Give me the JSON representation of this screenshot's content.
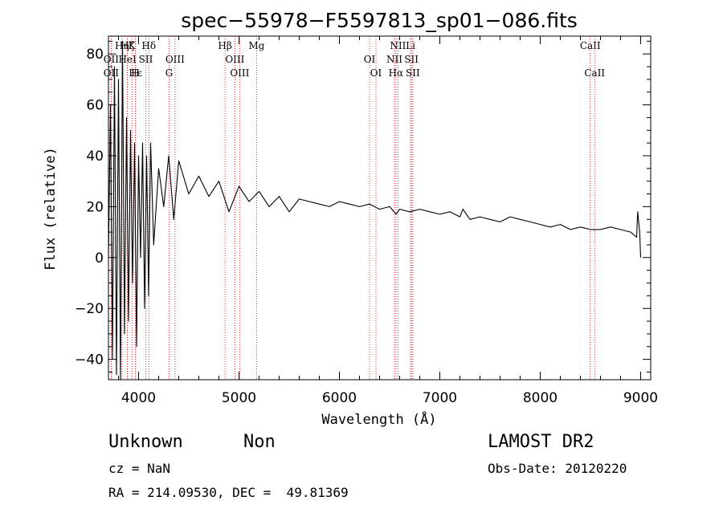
{
  "chart_data": {
    "type": "line",
    "title": "spec−55978−F5597813_sp01−086.fits",
    "xlabel": "Wavelength (Å)",
    "ylabel": "Flux (relative)",
    "xlim": [
      3700,
      9100
    ],
    "ylim": [
      -48,
      87
    ],
    "x_ticks": [
      4000,
      5000,
      6000,
      7000,
      8000,
      9000
    ],
    "y_ticks": [
      -40,
      -20,
      0,
      20,
      40,
      60,
      80
    ],
    "x_tick_labels": [
      "4000",
      "5000",
      "6000",
      "7000",
      "8000",
      "9000"
    ],
    "y_tick_labels": [
      "−40",
      "−20",
      "0",
      "20",
      "40",
      "60",
      "80"
    ],
    "grid": false,
    "line_color": "#000000",
    "marker_color": "#cc0000",
    "series": [
      {
        "x": [
          3700,
          3720,
          3740,
          3760,
          3780,
          3800,
          3820,
          3840,
          3860,
          3880,
          3900,
          3920,
          3940,
          3960,
          3980,
          4000,
          4020,
          4040,
          4060,
          4080,
          4100,
          4120,
          4150,
          4200,
          4250,
          4300,
          4350,
          4400,
          4500,
          4600,
          4700,
          4800,
          4900,
          5000,
          5100,
          5200,
          5300,
          5400,
          5500,
          5600,
          5700,
          5800,
          5900,
          6000,
          6100,
          6200,
          6300,
          6400,
          6500,
          6563,
          6600,
          6700,
          6800,
          6900,
          7000,
          7100,
          7200,
          7230,
          7300,
          7400,
          7500,
          7600,
          7700,
          7800,
          7900,
          8000,
          8100,
          8200,
          8300,
          8400,
          8500,
          8600,
          8700,
          8800,
          8900,
          8960,
          8970,
          8990,
          9000
        ],
        "y": [
          0,
          60,
          -40,
          75,
          -46,
          70,
          -48,
          85,
          -30,
          55,
          -25,
          50,
          -10,
          45,
          -35,
          40,
          0,
          45,
          -20,
          40,
          -15,
          45,
          5,
          35,
          20,
          40,
          15,
          38,
          25,
          32,
          24,
          30,
          18,
          28,
          22,
          26,
          20,
          24,
          18,
          23,
          22,
          21,
          20,
          22,
          21,
          20,
          21,
          19,
          20,
          17,
          19,
          18,
          19,
          18,
          17,
          18,
          16,
          19,
          15,
          16,
          15,
          14,
          16,
          15,
          14,
          13,
          12,
          13,
          11,
          12,
          11,
          11,
          12,
          11,
          10,
          8,
          18,
          10,
          0
        ]
      }
    ],
    "line_markers": [
      {
        "name": "Hη",
        "wave": 3835,
        "row": 1
      },
      {
        "name": "Hζ",
        "wave": 3889,
        "row": 1
      },
      {
        "name": "K",
        "wave": 3934,
        "row": 1
      },
      {
        "name": "Hδ",
        "wave": 4102,
        "row": 1
      },
      {
        "name": "Hβ",
        "wave": 4861,
        "row": 1
      },
      {
        "name": "Mg",
        "wave": 5175,
        "row": 1
      },
      {
        "name": "NII",
        "wave": 6583,
        "row": 1
      },
      {
        "name": "Li",
        "wave": 6708,
        "row": 1
      },
      {
        "name": "CaII",
        "wave": 8498,
        "row": 1
      },
      {
        "name": "OII",
        "wave": 3727,
        "row": 2
      },
      {
        "name": "HeI",
        "wave": 3889,
        "row": 2
      },
      {
        "name": "SII",
        "wave": 4072,
        "row": 2
      },
      {
        "name": "OIII",
        "wave": 4363,
        "row": 2
      },
      {
        "name": "OIII",
        "wave": 4959,
        "row": 2
      },
      {
        "name": "OI",
        "wave": 6300,
        "row": 2
      },
      {
        "name": "NII",
        "wave": 6548,
        "row": 2
      },
      {
        "name": "SII",
        "wave": 6717,
        "row": 2
      },
      {
        "name": "OII",
        "wave": 3727,
        "row": 3
      },
      {
        "name": "Hε",
        "wave": 3970,
        "row": 3
      },
      {
        "name": "H",
        "wave": 3968,
        "row": 3
      },
      {
        "name": "G",
        "wave": 4304,
        "row": 3
      },
      {
        "name": "OIII",
        "wave": 5007,
        "row": 3
      },
      {
        "name": "OI",
        "wave": 6364,
        "row": 3
      },
      {
        "name": "Hα",
        "wave": 6563,
        "row": 3
      },
      {
        "name": "SII",
        "wave": 6731,
        "row": 3
      },
      {
        "name": "CaII",
        "wave": 8542,
        "row": 3
      }
    ]
  },
  "info": {
    "class_label": "Unknown",
    "subclass_label": "Non",
    "cz": "cz = NaN",
    "coords": "RA = 214.09530, DEC =  49.81369",
    "survey": "LAMOST DR2",
    "obs_date": "Obs-Date: 20120220"
  }
}
